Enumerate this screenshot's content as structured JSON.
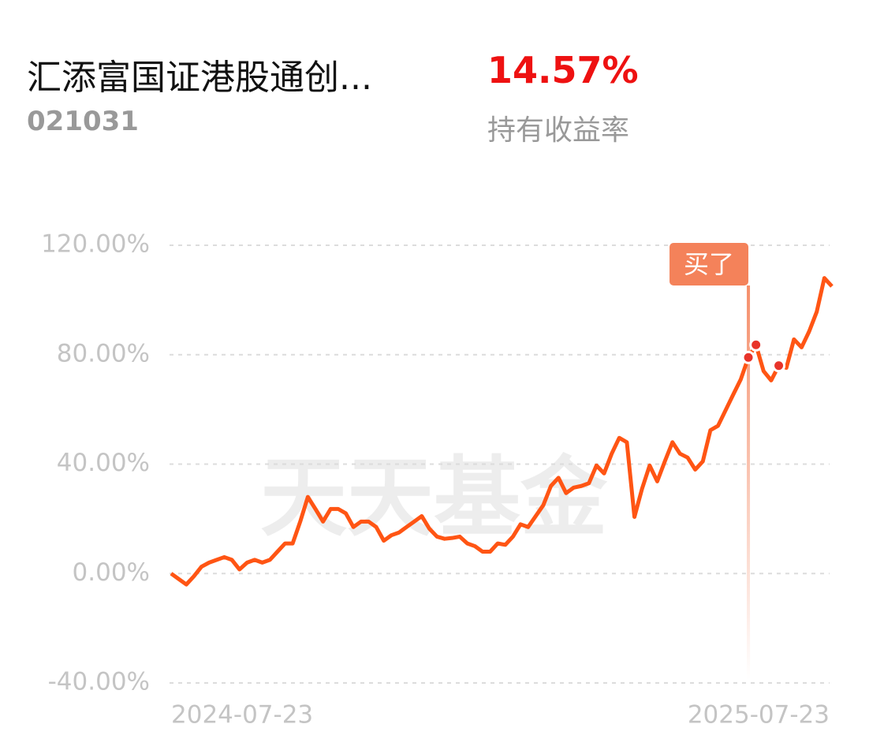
{
  "header": {
    "fund_name": "汇添富国证港股通创...",
    "fund_code": "021031",
    "return_value": "14.57%",
    "return_label": "持有收益率"
  },
  "chart_data": {
    "type": "line",
    "watermark": "天天基金",
    "categories": [
      "2024-07-23",
      null,
      null,
      null,
      null,
      null,
      null,
      null,
      null,
      null,
      null,
      null,
      null,
      null,
      null,
      null,
      null,
      null,
      null,
      null,
      null,
      null,
      null,
      null,
      null,
      null,
      null,
      null,
      null,
      null,
      null,
      null,
      null,
      null,
      null,
      null,
      null,
      null,
      null,
      null,
      null,
      null,
      null,
      null,
      null,
      null,
      null,
      null,
      null,
      null,
      null,
      null,
      null,
      null,
      null,
      null,
      null,
      null,
      null,
      null,
      null,
      null,
      null,
      null,
      null,
      null,
      null,
      null,
      null,
      null,
      null,
      null,
      null,
      null,
      null,
      null,
      null,
      null,
      null,
      null,
      null,
      null,
      null,
      null,
      null,
      null,
      null,
      "2025-07-23"
    ],
    "series": [
      {
        "color": "#ff5514",
        "values": [
          0,
          -2,
          -4,
          -1,
          2.5,
          4,
          5,
          6,
          5,
          1.5,
          4,
          5,
          4,
          5,
          8,
          11,
          11,
          19,
          28,
          23.6,
          19,
          23.6,
          23.6,
          22,
          17,
          19,
          19,
          17,
          12,
          14,
          15,
          17,
          19,
          21,
          16.4,
          13.5,
          12.7,
          13,
          13.5,
          11,
          10,
          8,
          8,
          11,
          10.5,
          13.5,
          18,
          17,
          21,
          25,
          32,
          35,
          29.4,
          31.4,
          32,
          33,
          39.5,
          36.6,
          43.8,
          49.6,
          48,
          20.7,
          31,
          39.5,
          33.7,
          41,
          48,
          43.8,
          42.4,
          38,
          41,
          52.4,
          54,
          59.7,
          65.4,
          71,
          79,
          83.6,
          74,
          70.6,
          76,
          75.2,
          85.6,
          82.7,
          88.5,
          95.7,
          108,
          105
        ]
      }
    ],
    "markers": {
      "indices": [
        76,
        77,
        80
      ],
      "color": "#e8342a"
    },
    "annotation": {
      "text": "买了",
      "index": 76,
      "color": "#f4825a"
    },
    "ylim": [
      -40,
      120
    ],
    "yticks": [
      {
        "value": -40,
        "label": "-40.00%"
      },
      {
        "value": 0,
        "label": "0.00%"
      },
      {
        "value": 40,
        "label": "40.00%"
      },
      {
        "value": 80,
        "label": "80.00%"
      },
      {
        "value": 120,
        "label": "120.00%"
      }
    ],
    "grid": true
  }
}
